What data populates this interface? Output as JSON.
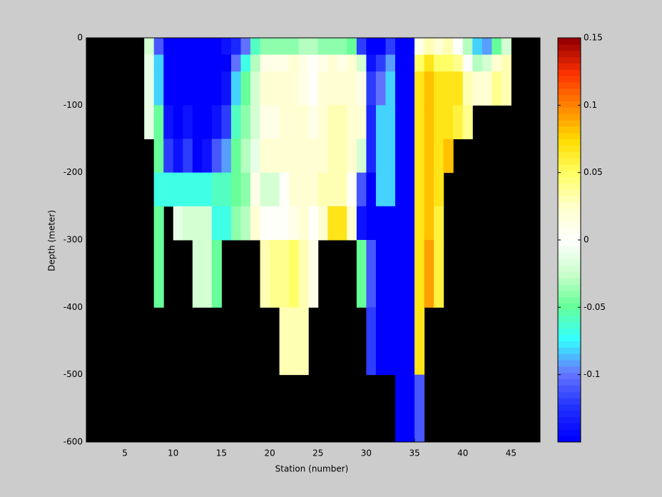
{
  "chart_data": {
    "type": "heatmap",
    "xlabel": "Station (number)",
    "ylabel": "Depth (meter)",
    "x": [
      7,
      8,
      9,
      10,
      11,
      12,
      13,
      14,
      15,
      16,
      17,
      18,
      19,
      20,
      21,
      22,
      23,
      24,
      25,
      26,
      27,
      28,
      29,
      30,
      31,
      32,
      33,
      34,
      35,
      36,
      37,
      38,
      39,
      40,
      41,
      42,
      43,
      44
    ],
    "depth_edges": [
      0,
      -25,
      -50,
      -100,
      -150,
      -200,
      -250,
      -300,
      -400,
      -500,
      -600
    ],
    "z": [
      [
        -0.02,
        -0.01,
        -0.01,
        -0.01,
        null,
        null,
        null,
        null,
        null,
        null
      ],
      [
        -0.11,
        -0.08,
        -0.08,
        -0.05,
        -0.05,
        -0.07,
        -0.05,
        -0.05,
        null,
        null
      ],
      [
        -0.15,
        -0.15,
        -0.15,
        -0.14,
        -0.12,
        -0.07,
        null,
        null,
        null,
        null
      ],
      [
        -0.15,
        -0.15,
        -0.15,
        -0.15,
        -0.14,
        -0.07,
        -0.01,
        null,
        null,
        null
      ],
      [
        -0.15,
        -0.15,
        -0.15,
        -0.14,
        -0.12,
        -0.07,
        -0.02,
        null,
        null,
        null
      ],
      [
        -0.15,
        -0.15,
        -0.15,
        -0.15,
        -0.15,
        -0.07,
        -0.02,
        -0.02,
        null,
        null
      ],
      [
        -0.15,
        -0.15,
        -0.15,
        -0.15,
        -0.14,
        -0.07,
        -0.02,
        -0.02,
        null,
        null
      ],
      [
        -0.15,
        -0.15,
        -0.15,
        -0.14,
        -0.11,
        -0.06,
        -0.07,
        -0.05,
        null,
        null
      ],
      [
        -0.14,
        -0.15,
        -0.14,
        -0.12,
        -0.09,
        -0.06,
        -0.07,
        null,
        null,
        null
      ],
      [
        -0.13,
        -0.1,
        -0.08,
        -0.06,
        -0.05,
        -0.05,
        -0.04,
        null,
        null,
        null
      ],
      [
        -0.1,
        -0.07,
        -0.05,
        -0.04,
        -0.03,
        -0.04,
        -0.03,
        null,
        null,
        null
      ],
      [
        -0.06,
        -0.03,
        -0.02,
        -0.02,
        -0.01,
        0.01,
        0.02,
        null,
        null,
        null
      ],
      [
        -0.04,
        0.01,
        0.02,
        0.01,
        0.02,
        -0.02,
        0,
        0.03,
        null,
        null
      ],
      [
        -0.04,
        0.01,
        0.02,
        0.01,
        0.02,
        -0.02,
        0,
        0.04,
        null,
        null
      ],
      [
        -0.04,
        0.01,
        0.02,
        0.02,
        0.02,
        0,
        0,
        0.04,
        0.03,
        null
      ],
      [
        -0.04,
        0.02,
        0.02,
        0.02,
        0.02,
        0.02,
        0.01,
        0.05,
        0.03,
        null
      ],
      [
        -0.03,
        0.01,
        0.01,
        0.02,
        0.02,
        0.02,
        0.02,
        0.03,
        0.03,
        null
      ],
      [
        -0.03,
        0,
        0,
        0.01,
        0.02,
        0.02,
        0,
        0.01,
        null,
        null
      ],
      [
        -0.04,
        0.01,
        0.02,
        0.02,
        0.02,
        0.03,
        0.02,
        null,
        null,
        null
      ],
      [
        -0.04,
        0.02,
        0.02,
        0.03,
        0.03,
        0.03,
        0.07,
        null,
        null,
        null
      ],
      [
        -0.04,
        0.01,
        0.02,
        0.03,
        0.03,
        0.03,
        0.07,
        null,
        null,
        null
      ],
      [
        -0.05,
        0.02,
        0.02,
        0.02,
        0.02,
        0,
        0.02,
        null,
        null,
        null
      ],
      [
        -0.12,
        -0.02,
        0.01,
        0.02,
        -0.02,
        -0.11,
        -0.14,
        -0.05,
        null,
        null
      ],
      [
        -0.15,
        -0.14,
        -0.12,
        -0.13,
        -0.13,
        -0.15,
        -0.15,
        -0.11,
        -0.12,
        null
      ],
      [
        -0.15,
        -0.12,
        -0.1,
        -0.08,
        -0.08,
        -0.08,
        -0.15,
        -0.15,
        -0.15,
        null
      ],
      [
        -0.12,
        -0.09,
        -0.08,
        -0.08,
        -0.08,
        -0.08,
        -0.15,
        -0.15,
        -0.15,
        null
      ],
      [
        -0.15,
        -0.15,
        -0.15,
        -0.15,
        -0.15,
        -0.15,
        -0.15,
        -0.15,
        -0.15,
        -0.15
      ],
      [
        -0.15,
        -0.15,
        -0.15,
        -0.15,
        -0.15,
        -0.15,
        -0.15,
        -0.15,
        -0.15,
        -0.15
      ],
      [
        0.01,
        0.05,
        0.07,
        0.07,
        0.07,
        0.07,
        0.07,
        0.07,
        0.07,
        -0.11
      ],
      [
        0.03,
        0.07,
        0.08,
        0.08,
        0.08,
        0.08,
        0.08,
        0.09,
        null,
        null
      ],
      [
        0.02,
        0.05,
        0.07,
        0.07,
        0.07,
        0.07,
        0.06,
        0.06,
        null,
        null
      ],
      [
        0.03,
        0.05,
        0.07,
        0.07,
        0.08,
        null,
        null,
        null,
        null,
        null
      ],
      [
        0,
        0.04,
        0.07,
        0.06,
        null,
        null,
        null,
        null,
        null,
        null
      ],
      [
        -0.03,
        0,
        0.03,
        0.04,
        null,
        null,
        null,
        null,
        null,
        null
      ],
      [
        -0.08,
        -0.03,
        0.02,
        null,
        null,
        null,
        null,
        null,
        null,
        null
      ],
      [
        -0.09,
        -0.02,
        0.02,
        null,
        null,
        null,
        null,
        null,
        null,
        null
      ],
      [
        -0.05,
        0.02,
        0.04,
        null,
        null,
        null,
        null,
        null,
        null,
        null
      ],
      [
        -0.02,
        0.03,
        0.03,
        null,
        null,
        null,
        null,
        null,
        null,
        null
      ]
    ],
    "xlim": [
      1,
      48
    ],
    "xticks": [
      5,
      10,
      15,
      20,
      25,
      30,
      35,
      40,
      45
    ],
    "ylim": [
      -600,
      0
    ],
    "yticks": [
      0,
      -100,
      -200,
      -300,
      -400,
      -500,
      -600
    ],
    "clim": [
      -0.15,
      0.15
    ],
    "cticks": [
      0.15,
      0.1,
      0.05,
      0,
      -0.05,
      -0.1
    ],
    "background": "#000000",
    "colormap": [
      "#0000ff",
      "#2233ff",
      "#6677ff",
      "#33ffff",
      "#66ff99",
      "#ccffcc",
      "#ffffff",
      "#ffffcc",
      "#ffff66",
      "#ffdd00",
      "#ff8800",
      "#ff3300",
      "#990000"
    ]
  }
}
